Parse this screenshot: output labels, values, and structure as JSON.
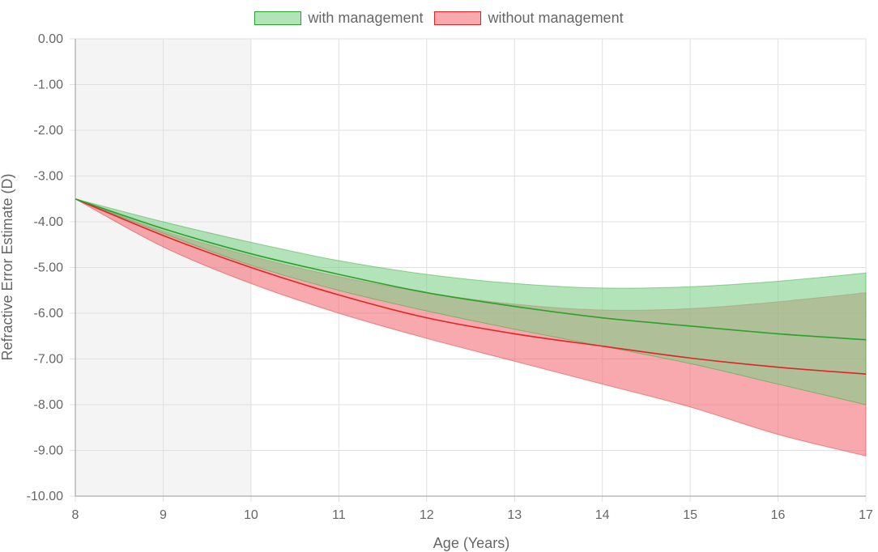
{
  "chart_data": {
    "type": "area",
    "xlabel": "Age (Years)",
    "ylabel": "Refractive Error Estimate (D)",
    "xlim": [
      8,
      17
    ],
    "ylim": [
      -10,
      0
    ],
    "x_ticks": [
      "8",
      "9",
      "10",
      "11",
      "12",
      "13",
      "14",
      "15",
      "16",
      "17"
    ],
    "y_ticks": [
      "0.00",
      "-1.00",
      "-2.00",
      "-3.00",
      "-4.00",
      "-5.00",
      "-6.00",
      "-7.00",
      "-8.00",
      "-9.00",
      "-10.00"
    ],
    "shaded_region": {
      "x_from": 8,
      "x_to": 10,
      "color": "#f4f4f4"
    },
    "grid": true,
    "legend_position": "top",
    "x": [
      8,
      9,
      10,
      11,
      12,
      13,
      14,
      15,
      16,
      17
    ],
    "series": [
      {
        "name": "with management",
        "color": "#2aa12a",
        "fill": "#7fd18a",
        "upper": [
          -3.5,
          -4.0,
          -4.45,
          -4.85,
          -5.15,
          -5.35,
          -5.45,
          -5.42,
          -5.3,
          -5.12
        ],
        "mean": [
          -3.5,
          -4.15,
          -4.7,
          -5.15,
          -5.55,
          -5.85,
          -6.1,
          -6.28,
          -6.45,
          -6.58
        ],
        "lower": [
          -3.5,
          -4.25,
          -4.95,
          -5.5,
          -5.95,
          -6.35,
          -6.72,
          -7.1,
          -7.55,
          -8.0
        ]
      },
      {
        "name": "without management",
        "color": "#e02424",
        "fill": "#f26f78",
        "upper": [
          -3.5,
          -4.2,
          -4.75,
          -5.2,
          -5.55,
          -5.8,
          -5.93,
          -5.9,
          -5.75,
          -5.55
        ],
        "mean": [
          -3.5,
          -4.3,
          -5.0,
          -5.6,
          -6.1,
          -6.45,
          -6.72,
          -6.98,
          -7.18,
          -7.33
        ],
        "lower": [
          -3.5,
          -4.55,
          -5.35,
          -6.0,
          -6.55,
          -7.05,
          -7.55,
          -8.05,
          -8.65,
          -9.12
        ]
      }
    ]
  }
}
